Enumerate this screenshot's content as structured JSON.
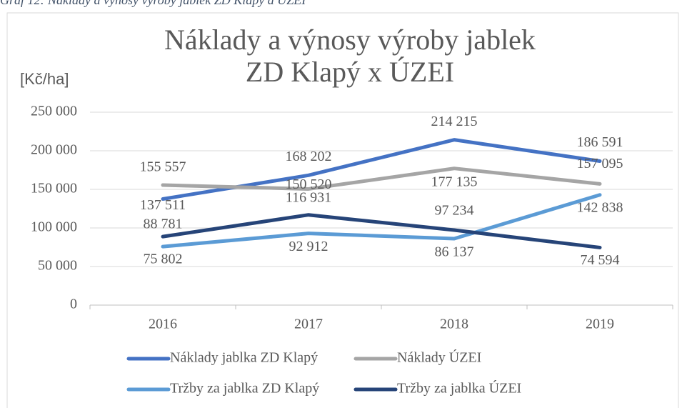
{
  "caption": "Graf 12: Náklady a výnosy výroby jablek ZD Klapý a ÚZEI",
  "chart_data": {
    "type": "line",
    "title": [
      "Náklady a výnosy výroby jablek",
      "ZD Klapý x ÚZEI"
    ],
    "y_label": "[Kč/ha]",
    "categories": [
      "2016",
      "2017",
      "2018",
      "2019"
    ],
    "series": [
      {
        "name": "Náklady jablka ZD Klapý",
        "color": "#4472c4",
        "values": [
          137511,
          168202,
          214215,
          186591
        ],
        "value_labels": [
          "137 511",
          "168 202",
          "214 215",
          "186 591"
        ]
      },
      {
        "name": "Náklady ÚZEI",
        "color": "#a5a5a5",
        "values": [
          155557,
          150520,
          177135,
          157095
        ],
        "value_labels": [
          "155 557",
          "150 520",
          "177 135",
          "157 095"
        ]
      },
      {
        "name": "Tržby za jablka ZD Klapý",
        "color": "#5b9bd5",
        "values": [
          75802,
          92912,
          86137,
          142838
        ],
        "value_labels": [
          "75 802",
          "92 912",
          "86 137",
          "142 838"
        ]
      },
      {
        "name": "Tržby za jablka ÚZEI",
        "color": "#264478",
        "values": [
          88781,
          116931,
          97234,
          74594
        ],
        "value_labels": [
          "88 781",
          "116 931",
          "97 234",
          "74 594"
        ]
      }
    ],
    "ylim": [
      0,
      250000
    ],
    "yticks": [
      0,
      {
        "value": 50000,
        "label": "50 000"
      },
      {
        "value": 100000,
        "label": "100 000"
      },
      {
        "value": 150000,
        "label": "150 000"
      },
      {
        "value": 200000,
        "label": "200 000"
      },
      {
        "value": 250000,
        "label": "250 000"
      }
    ],
    "grid": true,
    "legend": "bottom"
  }
}
